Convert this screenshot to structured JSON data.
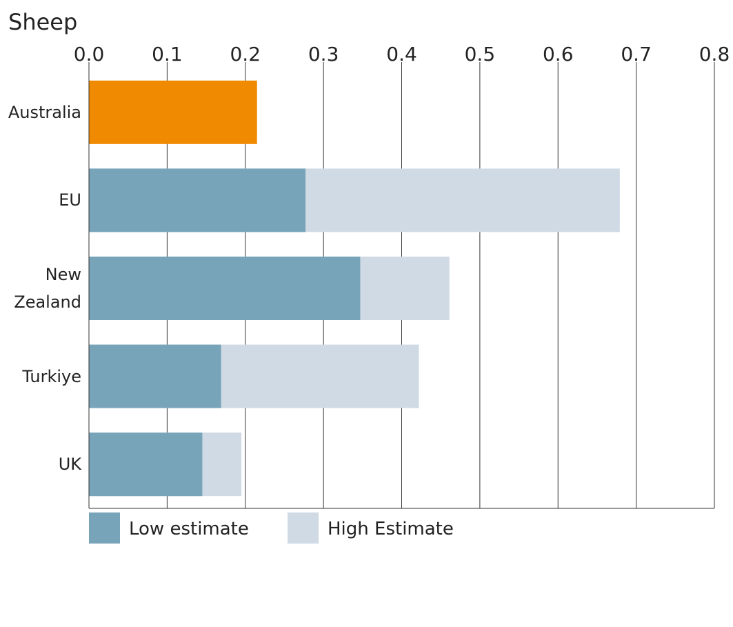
{
  "chart_data": {
    "type": "bar",
    "orientation": "horizontal",
    "overlap": true,
    "title": "Sheep",
    "categories": [
      "Australia",
      "EU",
      "New Zealand",
      "Turkiye",
      "UK"
    ],
    "series": [
      {
        "name": "Low estimate",
        "color": "#78a4b9",
        "point_colors": [
          "#f08a00",
          "#78a4b9",
          "#78a4b9",
          "#78a4b9",
          "#78a4b9"
        ],
        "values": [
          0.215,
          0.277,
          0.347,
          0.169,
          0.145
        ]
      },
      {
        "name": "High Estimate",
        "color": "#cfdae5",
        "values": [
          null,
          0.679,
          0.461,
          0.422,
          0.195
        ]
      }
    ],
    "xlim": [
      0,
      0.8
    ],
    "xticks": [
      {
        "value": 0,
        "label": "0.0"
      },
      0.1,
      0.2,
      0.3,
      0.4,
      0.5,
      0.6,
      0.7,
      0.8
    ],
    "grid": true
  }
}
